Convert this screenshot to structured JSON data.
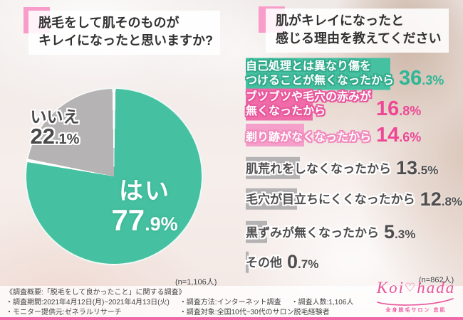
{
  "left_panel": {
    "title_line1": "脱毛をして肌そのものが",
    "title_line2": "キレイになったと思いますか?",
    "pie": {
      "yes_label": "はい",
      "yes_int": "77",
      "yes_dec": ".9%",
      "no_label": "いいえ",
      "no_int": "22",
      "no_dec": ".1%"
    },
    "sample_note": "(n=1,106人)"
  },
  "right_panel": {
    "title_line1": "肌がキレイになったと",
    "title_line2": "感じる理由を教えてください",
    "reasons": [
      {
        "label_line1": "自己処理とは異なり傷を",
        "label_line2": "つけることが無くなったから",
        "value": 36.3,
        "value_int": "36",
        "value_dec": ".3%",
        "style": "teal"
      },
      {
        "label_line1": "ブツブツや毛穴の赤みが",
        "label_line2": "無くなったから",
        "value": 16.8,
        "value_int": "16",
        "value_dec": ".8%",
        "style": "pink"
      },
      {
        "label_line1": "剃り跡がなくなったから",
        "label_line2": "",
        "value": 14.6,
        "value_int": "14",
        "value_dec": ".6%",
        "style": "lightpink"
      },
      {
        "label_line1": "肌荒れをしなくなったから",
        "label_line2": "",
        "value": 13.5,
        "value_int": "13",
        "value_dec": ".5%",
        "style": "gray"
      },
      {
        "label_line1": "毛穴が目立ちにくくなったから",
        "label_line2": "",
        "value": 12.8,
        "value_int": "12",
        "value_dec": ".8%",
        "style": "gray"
      },
      {
        "label_line1": "黒ずみが無くなったから",
        "label_line2": "",
        "value": 5.3,
        "value_int": "5",
        "value_dec": ".3%",
        "style": "gray"
      },
      {
        "label_line1": "その他",
        "label_line2": "",
        "value": 0.7,
        "value_int": "0",
        "value_dec": ".7%",
        "style": "gray"
      }
    ],
    "sample_note": "(n=862人)"
  },
  "footer": {
    "summary": "《調査概要:「脱毛をして良かったこと」に関する調査》",
    "period": "・調査期間:2021年4月12日(月)~2021年4月13日(火)",
    "method": "・調査方法:インターネット調査",
    "respondents": "・調査人数:1,106人",
    "monitor": "・モニター提供元:ゼネラルリサーチ",
    "target": "・調査対象:全国10代~30代のサロン脱毛経験者"
  },
  "logo": {
    "word1": "Koi",
    "heart": "♡",
    "word2": "hada",
    "subtext": "全身脱毛サロン 恋肌"
  },
  "colors": {
    "teal_bar": "#45c1a1",
    "teal_percent": "#2eb795",
    "pink_bar": "#f06ca8",
    "light_pink_bar": "#f5a0ca",
    "pink_percent": "#ee4795",
    "gray_bar": "#b5b2b4",
    "gray_text": "#4f4d4e",
    "pie_yes": "#45c1a1",
    "pie_no": "#b5b3b4",
    "accent_square": "#f89cc9",
    "footer_line": "#f06ca8",
    "logo_pink": "#e85499"
  },
  "chart_data": [
    {
      "type": "pie",
      "title": "脱毛をして肌そのものがキレイになったと思いますか?",
      "labels": [
        "はい",
        "いいえ"
      ],
      "values": [
        77.9,
        22.1
      ],
      "colors": [
        "#45c1a1",
        "#b5b3b4"
      ],
      "sample_size": "n=1,106人",
      "start_angle_deg_from_top": 0,
      "direction": "clockwise"
    },
    {
      "type": "bar",
      "title": "肌がキレイになったと感じる理由を教えてください",
      "orientation": "horizontal",
      "categories": [
        "自己処理とは異なり傷をつけることが無くなったから",
        "ブツブツや毛穴の赤みが無くなったから",
        "剃り跡がなくなったから",
        "肌荒れをしなくなったから",
        "毛穴が目立ちにくくなったから",
        "黒ずみが無くなったから",
        "その他"
      ],
      "values": [
        36.3,
        16.8,
        14.6,
        13.5,
        12.8,
        5.3,
        0.7
      ],
      "bar_colors": [
        "#45c1a1",
        "#f06ca8",
        "#f5a0ca",
        "#b5b2b4",
        "#b5b2b4",
        "#b5b2b4",
        "#b5b2b4"
      ],
      "xlim": [
        0,
        40
      ],
      "sample_size": "n=862人"
    }
  ]
}
